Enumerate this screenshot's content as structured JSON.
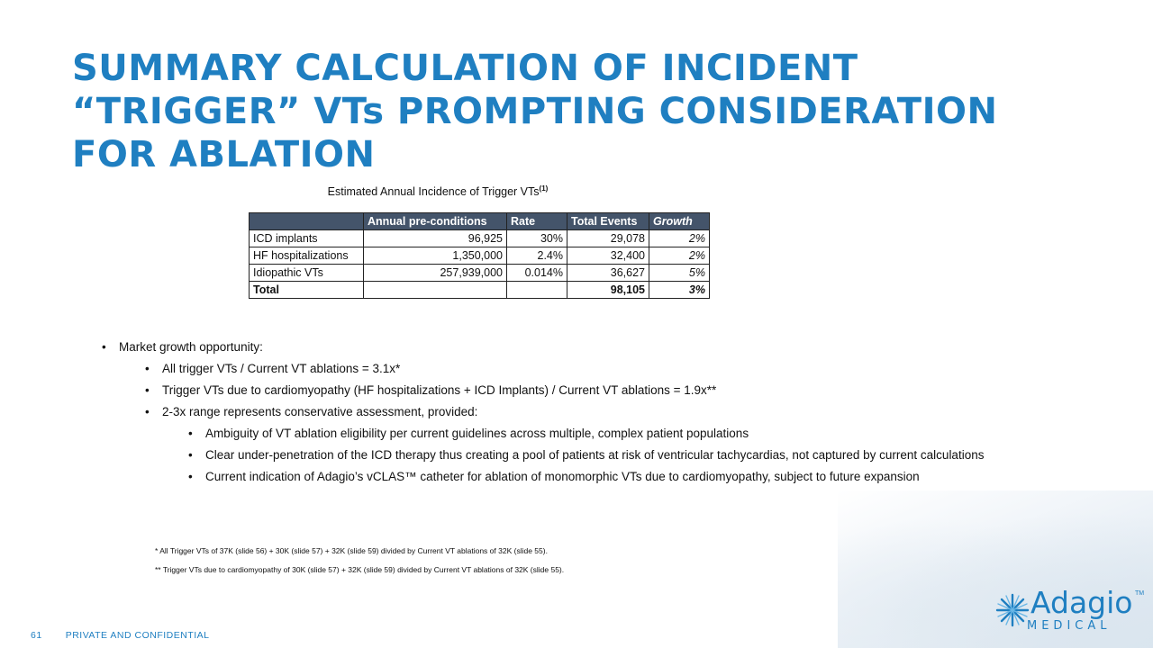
{
  "title": "SUMMARY CALCULATION OF INCIDENT “TRIGGER” VTs PROMPTING CONSIDERATION FOR ABLATION",
  "table": {
    "caption": "Estimated Annual Incidence of Trigger VTs",
    "caption_sup": "(1)",
    "headers": [
      "",
      "Annual pre-conditions",
      "Rate",
      "Total Events",
      "Growth"
    ],
    "rows": [
      [
        "ICD implants",
        "96,925",
        "30%",
        "29,078",
        "2%"
      ],
      [
        "HF hospitalizations",
        "1,350,000",
        "2.4%",
        "32,400",
        "2%"
      ],
      [
        "Idiopathic VTs",
        "257,939,000",
        "0.014%",
        "36,627",
        "5%"
      ],
      [
        "Total",
        "",
        "",
        "98,105",
        "3%"
      ]
    ]
  },
  "bullets": [
    {
      "level": 1,
      "text": "Market growth opportunity:"
    },
    {
      "level": 2,
      "text": "All trigger VTs / Current VT ablations = 3.1x*"
    },
    {
      "level": 2,
      "text": "Trigger VTs due to cardiomyopathy (HF hospitalizations + ICD Implants) / Current VT ablations = 1.9x**"
    },
    {
      "level": 2,
      "text": "2-3x range represents conservative assessment, provided:"
    },
    {
      "level": 3,
      "text": "Ambiguity of VT ablation eligibility per current guidelines across multiple, complex patient populations"
    },
    {
      "level": 3,
      "text": "Clear under-penetration of the ICD therapy thus creating a pool of patients at risk of ventricular tachycardias, not captured by current calculations"
    },
    {
      "level": 3,
      "text": "Current indication of Adagio’s vCLAS™ catheter for ablation of monomorphic VTs due to cardiomyopathy, subject to future expansion"
    }
  ],
  "footnotes": [
    "* All Trigger VTs of 37K (slide 56) + 30K (slide 57) + 32K (slide 59) divided by Current VT ablations of 32K (slide 55).",
    "** Trigger VTs due to cardiomyopathy of 30K (slide 57) + 32K (slide 59) divided by Current VT ablations of 32K (slide 55)."
  ],
  "footer": {
    "page_number": "61",
    "label": "PRIVATE AND CONFIDENTIAL"
  },
  "logo": {
    "word": "Adagio",
    "tm": "TM",
    "subtitle": "MEDICAL",
    "icon": "starburst-icon"
  },
  "colors": {
    "title_blue": "#1f7fc1",
    "table_header": "#44546a"
  }
}
